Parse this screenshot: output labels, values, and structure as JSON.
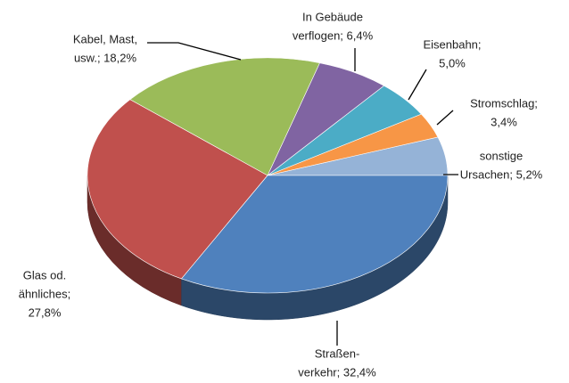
{
  "chart_data": {
    "type": "pie3d",
    "values": [
      5.2,
      3.4,
      5.0,
      6.4,
      18.2,
      27.8,
      32.4
    ],
    "labels": [
      [
        "sonstige",
        "Ursachen; 5,2%"
      ],
      [
        "Stromschlag;",
        "3,4%"
      ],
      [
        "Eisenbahn;",
        "5,0%"
      ],
      [
        "In Gebäude",
        "verflogen; 6,4%"
      ],
      [
        "Kabel, Mast,",
        "usw.; 18,2%"
      ],
      [
        "Glas od.",
        "ähnliches;",
        "27,8%"
      ],
      [
        "Straßen-",
        "verkehr; 32,4%"
      ]
    ],
    "colors": [
      "#95b3d7",
      "#f79646",
      "#4bacc6",
      "#8064a2",
      "#9bbb59",
      "#c0504d",
      "#4f81bd"
    ]
  }
}
